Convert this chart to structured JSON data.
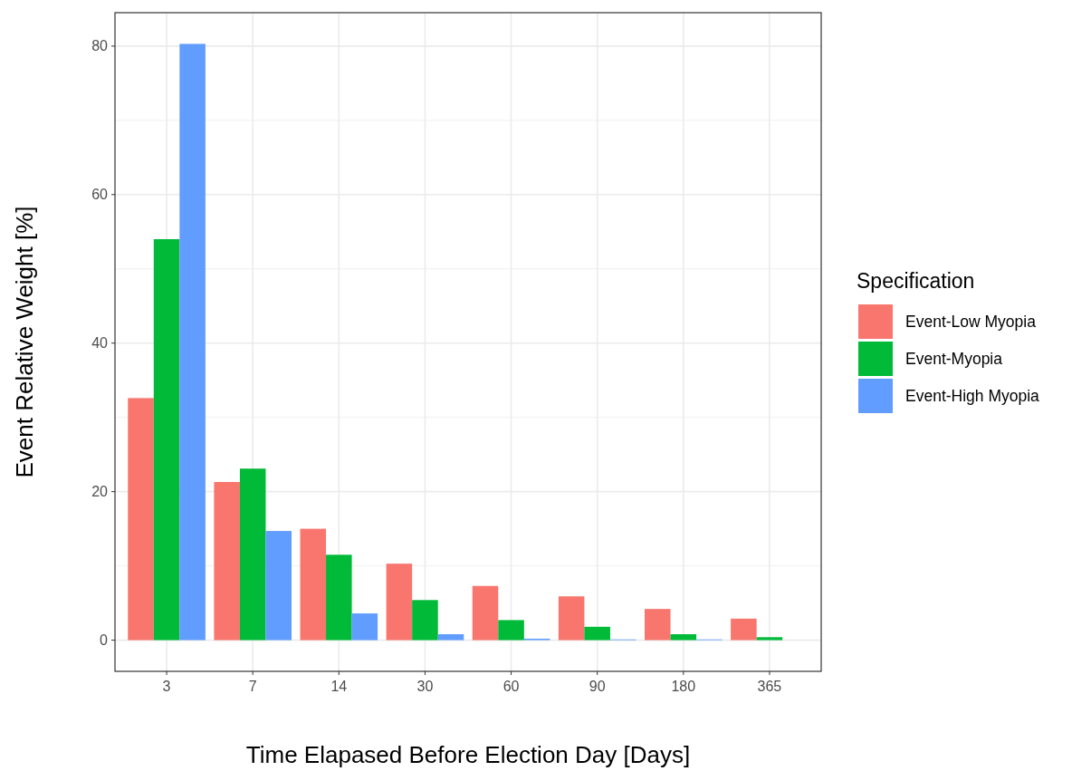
{
  "chart_data": {
    "type": "bar",
    "xlabel": "Time Elapased Before Election Day [Days]",
    "ylabel": "Event Relative Weight [%]",
    "legend_title": "Specification",
    "categories": [
      "3",
      "7",
      "14",
      "30",
      "60",
      "90",
      "180",
      "365"
    ],
    "series": [
      {
        "name": "Event-Low Myopia",
        "color": "#f8766d",
        "values": [
          32.6,
          21.3,
          15.0,
          10.3,
          7.3,
          5.9,
          4.2,
          2.9
        ]
      },
      {
        "name": "Event-Myopia",
        "color": "#00ba38",
        "values": [
          54.0,
          23.1,
          11.5,
          5.4,
          2.7,
          1.8,
          0.8,
          0.4
        ]
      },
      {
        "name": "Event-High Myopia",
        "color": "#619cff",
        "values": [
          80.3,
          14.7,
          3.6,
          0.8,
          0.2,
          0.1,
          0.1,
          0
        ]
      }
    ],
    "ylim": [
      -4.2,
      84.5
    ],
    "yticks": [
      0,
      20,
      40,
      60,
      80
    ],
    "grid": true,
    "legend": "right"
  }
}
